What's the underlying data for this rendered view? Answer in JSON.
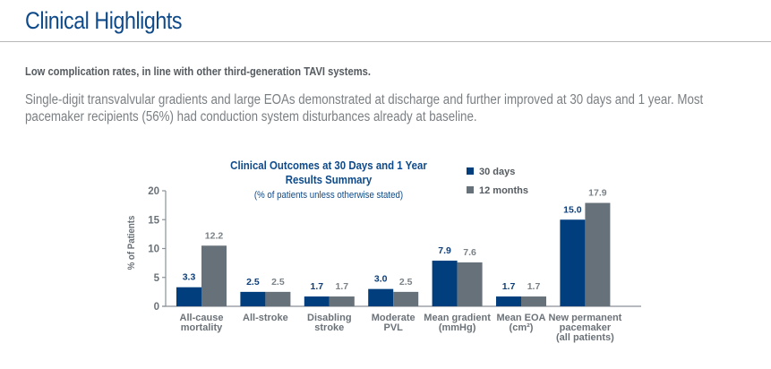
{
  "page": {
    "title": "Clinical Highlights",
    "lead": "Low complication rates, in line with other third-generation TAVI systems.",
    "body": "Single-digit transvalvular gradients and large EOAs demonstrated at discharge and further improved at 30 days and 1 year. Most pacemaker recipients (56%) had conduction system disturbances already at baseline."
  },
  "colors": {
    "series_30_days": "#003e7e",
    "series_12_months": "#67717a",
    "title_blue": "#0e4a8a",
    "axis": "#6b7278"
  },
  "chart_data": {
    "type": "bar",
    "title": "Clinical Outcomes at 30 Days and 1 Year",
    "title_line2": "Results Summary",
    "subtitle": "(% of patients unless otherwise stated)",
    "xlabel": "",
    "ylabel": "% of Patients",
    "ylim": [
      0,
      20
    ],
    "yticks": [
      0,
      5,
      10,
      15,
      20
    ],
    "grid": false,
    "legend_position": "top-right",
    "categories": [
      [
        "All-cause",
        "mortality"
      ],
      [
        "All-stroke"
      ],
      [
        "Disabling",
        "stroke"
      ],
      [
        "Moderate",
        "PVL"
      ],
      [
        "Mean gradient",
        "(mmHg)"
      ],
      [
        "Mean EOA",
        "(cm²)"
      ],
      [
        "New permanent",
        "pacemaker",
        "(all patients)"
      ]
    ],
    "series": [
      {
        "name": "30 days",
        "values": [
          3.3,
          2.5,
          1.7,
          3.0,
          7.9,
          1.7,
          15.0
        ],
        "labels": [
          "3.3",
          "2.5",
          "1.7",
          "3.0",
          "7.9",
          "1.7",
          "15.0"
        ]
      },
      {
        "name": "12 months",
        "values": [
          12.2,
          2.5,
          1.7,
          2.5,
          7.6,
          1.7,
          17.9
        ],
        "labels": [
          "12.2",
          "2.5",
          "1.7",
          "2.5",
          "7.6",
          "1.7",
          "17.9"
        ]
      }
    ]
  }
}
